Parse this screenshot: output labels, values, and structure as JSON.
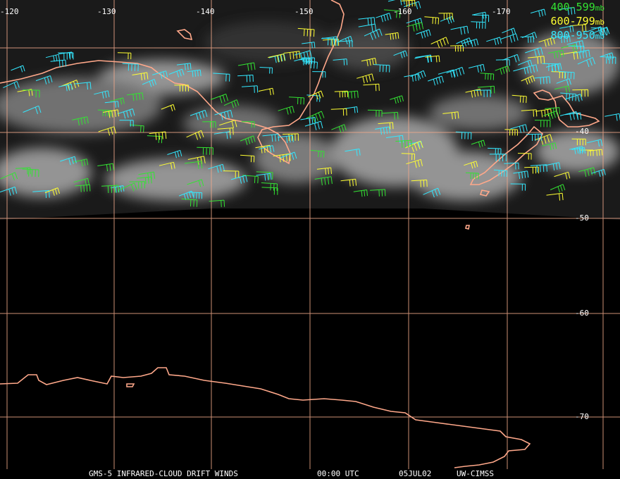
{
  "legend": {
    "unit": "mb",
    "entries": [
      {
        "label": "400-599",
        "color": "#33e333"
      },
      {
        "label": "600-799",
        "color": "#ffff33"
      },
      {
        "label": "800-950",
        "color": "#33e8ff"
      }
    ]
  },
  "lon_labels": [
    "-120",
    "-130",
    "-140",
    "-150",
    "-160",
    "-170"
  ],
  "lat_labels": [
    "-40",
    "-50",
    "-60",
    "-70"
  ],
  "caption": {
    "product": "GMS-5 INFRARED-CLOUD DRIFT WINDS",
    "time": "00:00 UTC",
    "date": "05JUL02",
    "source": "UW-CIMSS"
  },
  "colors": {
    "grid": "#f0a88a",
    "coast": "#ffa88a",
    "background": "#000000"
  }
}
